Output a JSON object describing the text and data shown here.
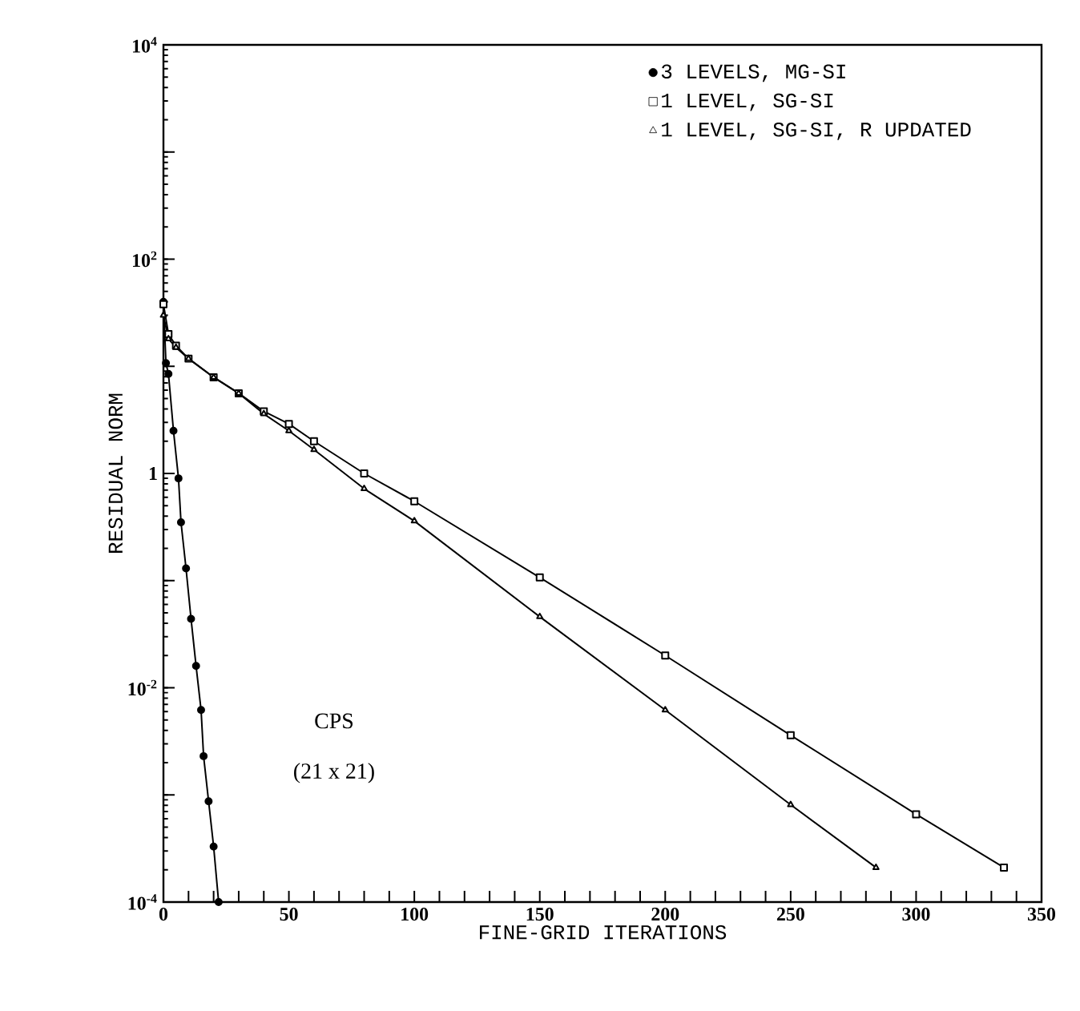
{
  "chart_data": {
    "type": "line",
    "log": "y",
    "xlabel": "FINE-GRID ITERATIONS",
    "ylabel": "RESIDUAL NORM",
    "xlim": [
      0,
      350
    ],
    "ylim": [
      0.0001,
      10000
    ],
    "xticks": [
      0,
      {
        "value": 10,
        "label": null
      },
      {
        "value": 20,
        "label": null
      },
      {
        "value": 30,
        "label": null
      },
      {
        "value": 40,
        "label": null
      },
      50,
      {
        "value": 60,
        "label": null
      },
      {
        "value": 70,
        "label": null
      },
      {
        "value": 80,
        "label": null
      },
      {
        "value": 90,
        "label": null
      },
      100,
      {
        "value": 110,
        "label": null
      },
      {
        "value": 120,
        "label": null
      },
      {
        "value": 130,
        "label": null
      },
      {
        "value": 140,
        "label": null
      },
      150,
      {
        "value": 160,
        "label": null
      },
      {
        "value": 170,
        "label": null
      },
      {
        "value": 180,
        "label": null
      },
      {
        "value": 190,
        "label": null
      },
      200,
      {
        "value": 210,
        "label": null
      },
      {
        "value": 220,
        "label": null
      },
      {
        "value": 230,
        "label": null
      },
      {
        "value": 240,
        "label": null
      },
      250,
      {
        "value": 260,
        "label": null
      },
      {
        "value": 270,
        "label": null
      },
      {
        "value": 280,
        "label": null
      },
      {
        "value": 290,
        "label": null
      },
      300,
      {
        "value": 310,
        "label": null
      },
      {
        "value": 320,
        "label": null
      },
      {
        "value": 330,
        "label": null
      },
      {
        "value": 340,
        "label": null
      },
      350
    ],
    "yticks": [
      {
        "value": 0.0001,
        "label": "10$^{-4}$"
      },
      {
        "value": 0.001,
        "label": null
      },
      {
        "value": 0.01,
        "label": "10$^{-2}$"
      },
      {
        "value": 0.1,
        "label": null
      },
      1,
      {
        "value": 10,
        "label": null
      },
      {
        "value": 100,
        "label": "10$^{2}$"
      },
      {
        "value": 1000,
        "label": null
      },
      {
        "value": 10000,
        "label": "10$^{4}$"
      }
    ],
    "legend": "top right",
    "grid": false,
    "line_style": "solid",
    "annotations": [
      "CPS",
      "(21 x 21)"
    ],
    "series": [
      {
        "name": "3 LEVELS, MG-SI",
        "color": "#000000",
        "marker": "circle",
        "x": [
          0,
          1,
          2,
          4,
          6,
          7,
          9,
          11,
          13,
          15,
          16,
          18,
          20,
          22
        ],
        "values": [
          40,
          10.7,
          8.5,
          2.5,
          0.9,
          0.35,
          0.13,
          0.044,
          0.016,
          0.0062,
          0.0023,
          0.00087,
          0.00033,
          0.0001
        ]
      },
      {
        "name": "1 LEVEL, SG-SI",
        "color": "#000000",
        "marker": "square",
        "x": [
          0,
          2,
          5,
          10,
          20,
          30,
          40,
          50,
          60,
          80,
          100,
          150,
          200,
          250,
          300,
          335
        ],
        "values": [
          38,
          20,
          15.6,
          11.8,
          7.9,
          5.6,
          3.8,
          2.9,
          2.0,
          1.0,
          0.55,
          0.107,
          0.02,
          0.0036,
          0.00066,
          0.00021
        ]
      },
      {
        "name": "1 LEVEL, SG-SI, R UPDATED",
        "color": "#000000",
        "marker": "triangle",
        "x": [
          0,
          2,
          5,
          10,
          20,
          30,
          40,
          50,
          60,
          80,
          100,
          150,
          200,
          250,
          284
        ],
        "values": [
          30,
          18,
          15,
          11.8,
          7.9,
          5.6,
          3.6,
          2.5,
          1.67,
          0.72,
          0.36,
          0.046,
          0.0062,
          0.00081,
          0.00021
        ]
      }
    ]
  }
}
